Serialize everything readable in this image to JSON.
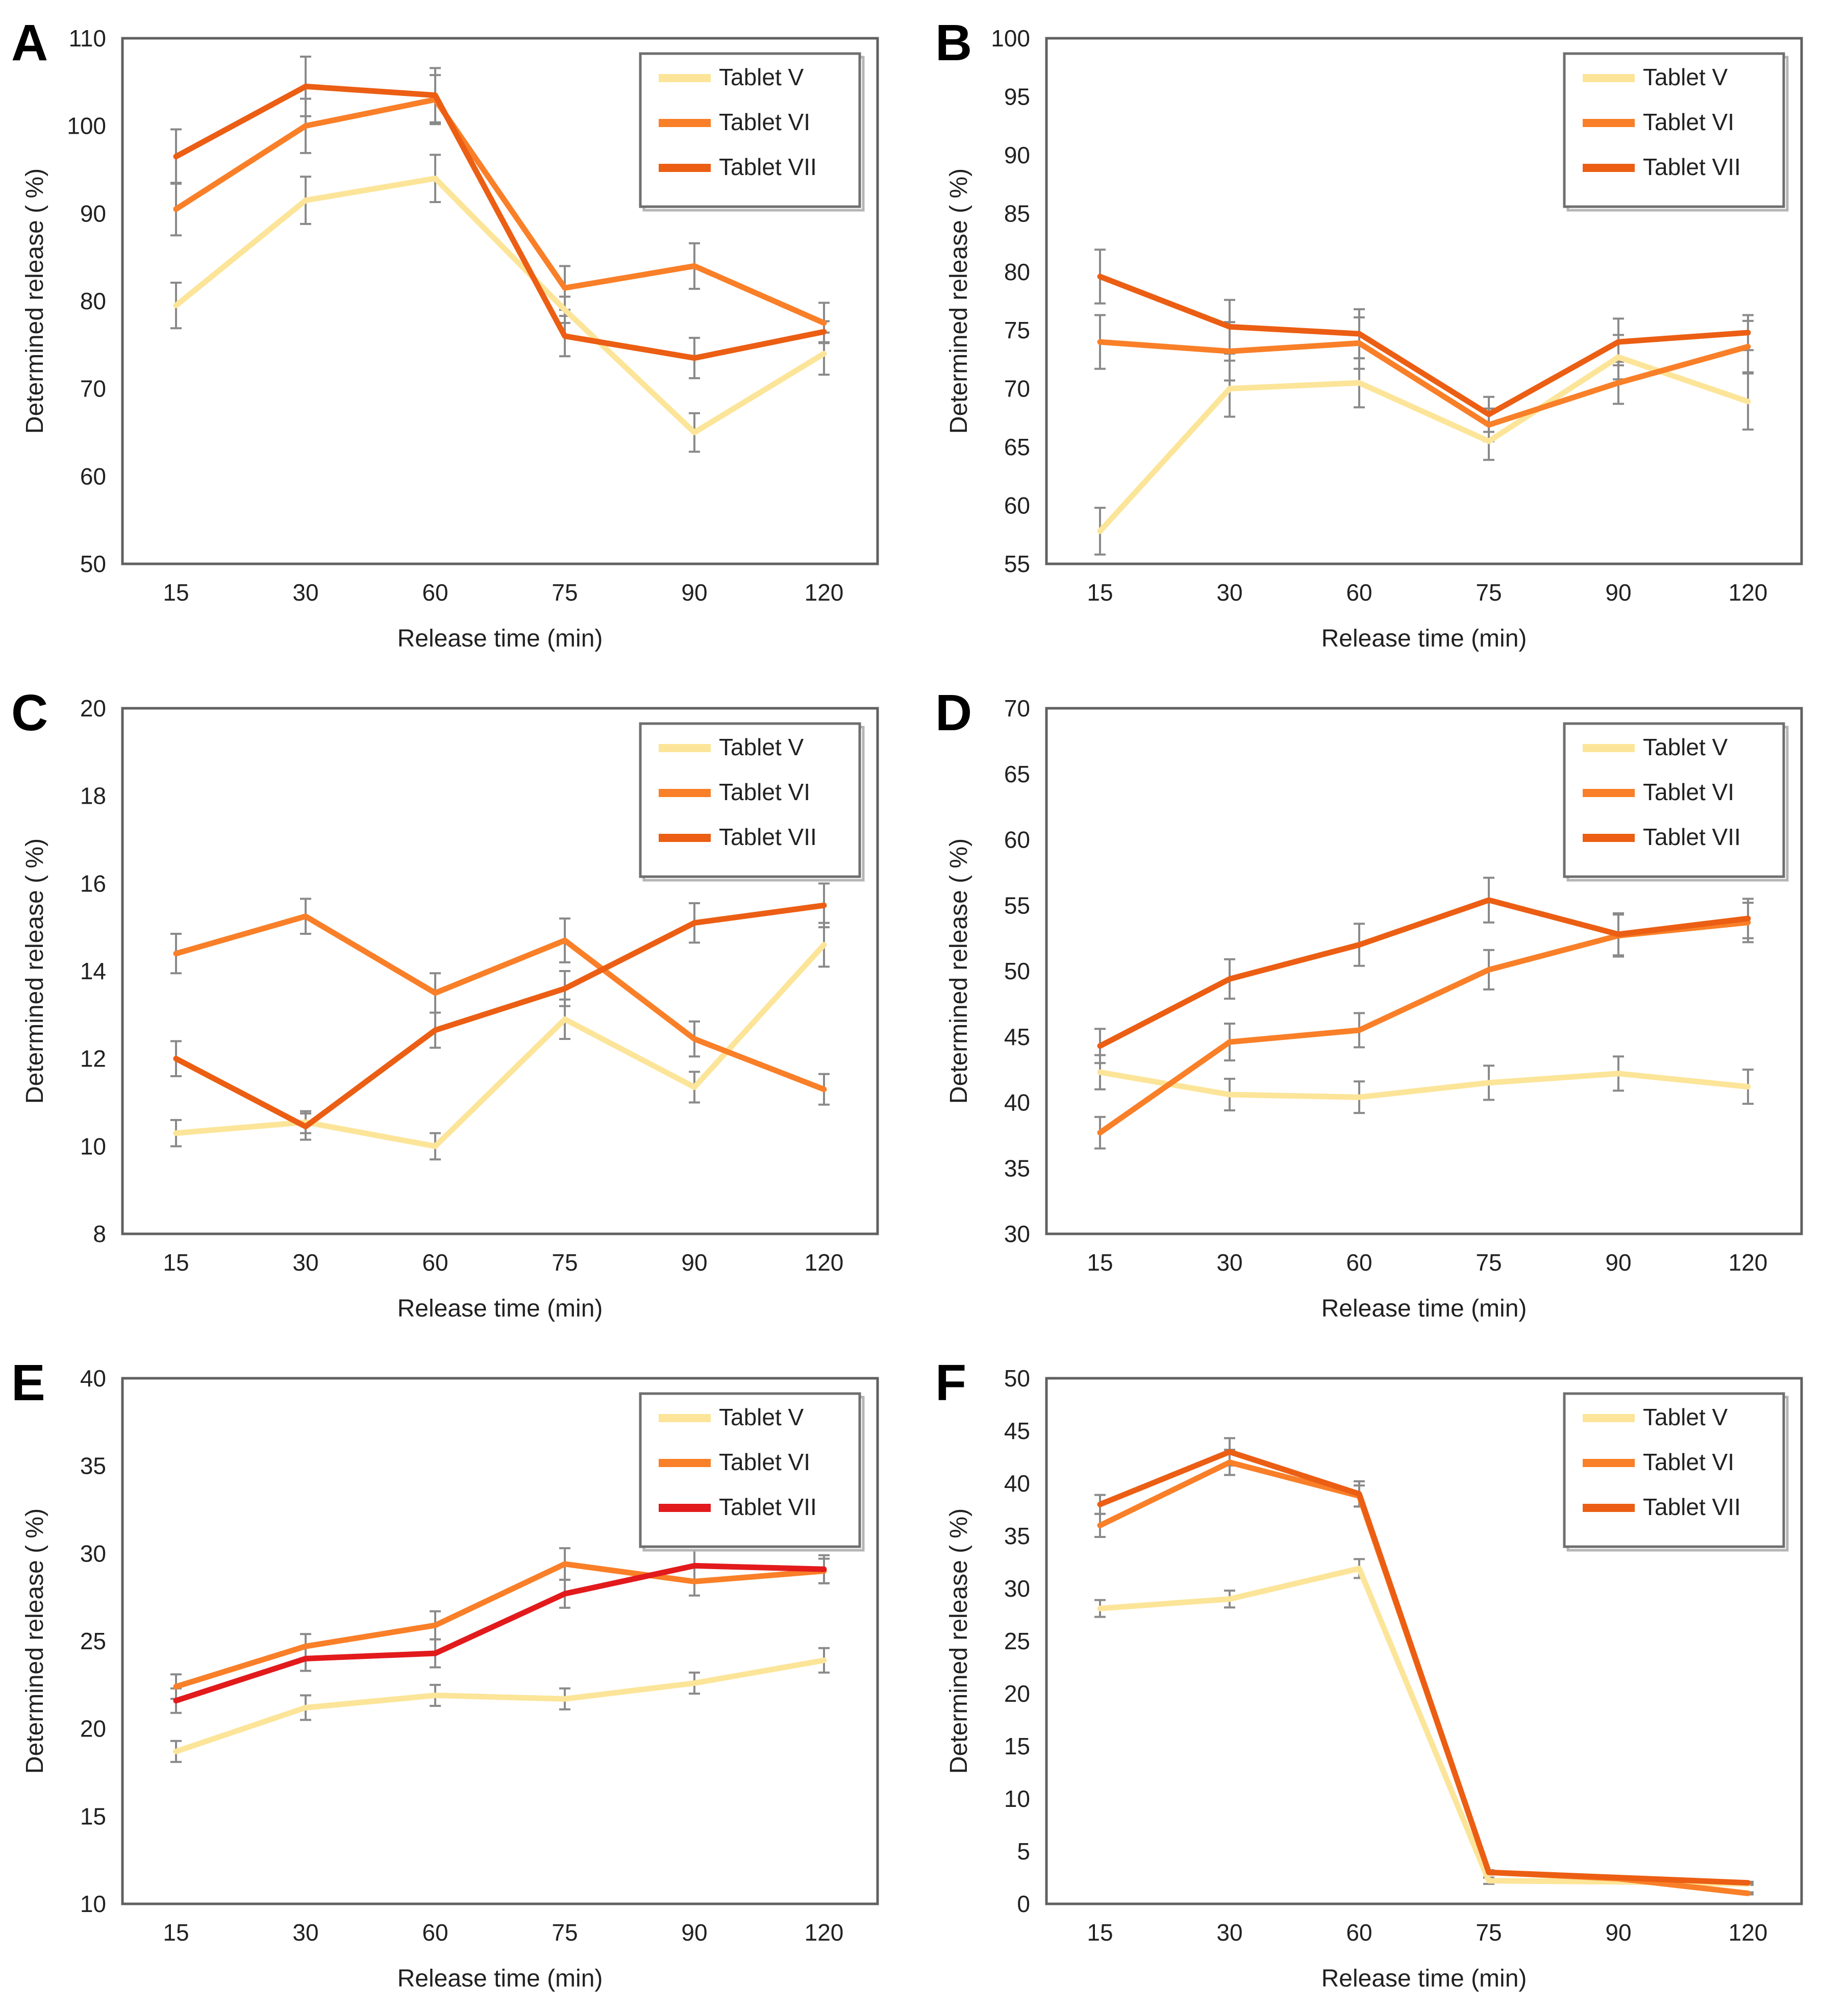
{
  "figure": {
    "xlabel": "Release time (min)",
    "ylabel": "Determined release ( %)",
    "categories": [
      "15",
      "30",
      "60",
      "75",
      "90",
      "120"
    ],
    "legend_labels": [
      "Tablet V",
      "Tablet VI",
      "Tablet VII"
    ],
    "legend_position": "top-right"
  },
  "colors": {
    "tablet_v": "#FCE599",
    "tablet_vi": "#F97F28",
    "tablet_vii": "#EB5E13",
    "tablet_vii_red": "#E21A1C",
    "error_bar": "#8A8A8A",
    "axis": "#606060",
    "text": "#212121",
    "legend_border": "#6F6F6F",
    "legend_shadow": "#B5B5B5"
  },
  "chart_data": [
    {
      "type": "line",
      "letter": "A",
      "xlabel": "Release time (min)",
      "ylabel": "Determined release ( %)",
      "categories": [
        "15",
        "30",
        "60",
        "75",
        "90",
        "120"
      ],
      "ylim": [
        50,
        110
      ],
      "ytick_step": 10,
      "grid": false,
      "legend_position": "top-right",
      "series": [
        {
          "name": "Tablet V",
          "color": "#FCE599",
          "values": [
            79.5,
            91.5,
            94.0,
            79.0,
            65.0,
            74.0
          ],
          "errors": [
            2.6,
            2.7,
            2.7,
            1.5,
            2.2,
            2.4
          ]
        },
        {
          "name": "Tablet VI",
          "color": "#F97F28",
          "values": [
            90.5,
            100.0,
            103.0,
            81.5,
            84.0,
            77.5
          ],
          "errors": [
            3.0,
            3.1,
            2.8,
            2.5,
            2.6,
            2.3
          ]
        },
        {
          "name": "Tablet VII",
          "color": "#EB5E13",
          "values": [
            96.5,
            104.5,
            103.5,
            76.0,
            73.5,
            76.5
          ],
          "errors": [
            3.1,
            3.4,
            3.1,
            2.3,
            2.3,
            1.2
          ]
        }
      ]
    },
    {
      "type": "line",
      "letter": "B",
      "xlabel": "Release time (min)",
      "ylabel": "Determined release ( %)",
      "categories": [
        "15",
        "30",
        "60",
        "75",
        "90",
        "120"
      ],
      "ylim": [
        55,
        100
      ],
      "ytick_step": 5,
      "grid": false,
      "legend_position": "top-right",
      "series": [
        {
          "name": "Tablet V",
          "color": "#FCE599",
          "values": [
            57.8,
            70.0,
            70.5,
            65.5,
            72.7,
            68.9
          ],
          "errors": [
            2.0,
            2.4,
            2.1,
            1.6,
            1.9,
            2.4
          ]
        },
        {
          "name": "Tablet VI",
          "color": "#F97F28",
          "values": [
            74.0,
            73.2,
            73.9,
            66.9,
            70.5,
            73.6
          ],
          "errors": [
            2.3,
            2.5,
            2.2,
            1.4,
            1.8,
            2.2
          ]
        },
        {
          "name": "Tablet VII",
          "color": "#EB5E13",
          "values": [
            79.6,
            75.3,
            74.7,
            67.8,
            74.0,
            74.8
          ],
          "errors": [
            2.3,
            2.3,
            2.1,
            1.5,
            2.0,
            1.5
          ]
        }
      ]
    },
    {
      "type": "line",
      "letter": "C",
      "xlabel": "Release time (min)",
      "ylabel": "Determined release ( %)",
      "categories": [
        "15",
        "30",
        "60",
        "75",
        "90",
        "120"
      ],
      "ylim": [
        8,
        20
      ],
      "ytick_step": 2,
      "grid": false,
      "legend_position": "top-right",
      "series": [
        {
          "name": "Tablet V",
          "color": "#FCE599",
          "values": [
            10.3,
            10.55,
            10.0,
            12.9,
            11.35,
            14.6
          ],
          "errors": [
            0.3,
            0.25,
            0.3,
            0.45,
            0.35,
            0.5
          ]
        },
        {
          "name": "Tablet VI",
          "color": "#F97F28",
          "values": [
            14.4,
            15.25,
            13.5,
            14.7,
            12.45,
            11.3
          ],
          "errors": [
            0.45,
            0.4,
            0.45,
            0.5,
            0.4,
            0.35
          ]
        },
        {
          "name": "Tablet VII",
          "color": "#EB5E13",
          "values": [
            12.0,
            10.45,
            12.65,
            13.6,
            15.1,
            15.5
          ],
          "errors": [
            0.4,
            0.3,
            0.4,
            0.4,
            0.45,
            0.5
          ]
        }
      ]
    },
    {
      "type": "line",
      "letter": "D",
      "xlabel": "Release time (min)",
      "ylabel": "Determined release ( %)",
      "categories": [
        "15",
        "30",
        "60",
        "75",
        "90",
        "120"
      ],
      "ylim": [
        30,
        70
      ],
      "ytick_step": 5,
      "grid": false,
      "legend_position": "top-right",
      "series": [
        {
          "name": "Tablet V",
          "color": "#FCE599",
          "values": [
            42.3,
            40.6,
            40.4,
            41.5,
            42.2,
            41.2
          ],
          "errors": [
            1.3,
            1.2,
            1.2,
            1.3,
            1.3,
            1.3
          ]
        },
        {
          "name": "Tablet VI",
          "color": "#F97F28",
          "values": [
            37.7,
            44.6,
            45.5,
            50.1,
            52.7,
            53.7
          ],
          "errors": [
            1.2,
            1.4,
            1.3,
            1.5,
            1.6,
            1.5
          ]
        },
        {
          "name": "Tablet VII",
          "color": "#EB5E13",
          "values": [
            44.3,
            49.4,
            52.0,
            55.4,
            52.8,
            54.0
          ],
          "errors": [
            1.3,
            1.5,
            1.6,
            1.7,
            1.6,
            1.5
          ]
        }
      ]
    },
    {
      "type": "line",
      "letter": "E",
      "xlabel": "Release time (min)",
      "ylabel": "Determined release ( %)",
      "categories": [
        "15",
        "30",
        "60",
        "75",
        "90",
        "120"
      ],
      "ylim": [
        10,
        40
      ],
      "ytick_step": 5,
      "grid": false,
      "legend_position": "top-right",
      "series": [
        {
          "name": "Tablet V",
          "color": "#FCE599",
          "values": [
            18.7,
            21.2,
            21.9,
            21.7,
            22.6,
            23.9
          ],
          "errors": [
            0.6,
            0.7,
            0.6,
            0.6,
            0.6,
            0.7
          ]
        },
        {
          "name": "Tablet VI",
          "color": "#F97F28",
          "values": [
            22.4,
            24.7,
            25.9,
            29.4,
            28.4,
            29.0
          ],
          "errors": [
            0.7,
            0.7,
            0.8,
            0.9,
            0.8,
            0.7
          ]
        },
        {
          "name": "Tablet VII",
          "color": "#E21A1C",
          "values": [
            21.6,
            24.0,
            24.3,
            27.7,
            29.3,
            29.1
          ],
          "errors": [
            0.7,
            0.7,
            0.8,
            0.8,
            0.9,
            0.8
          ]
        }
      ]
    },
    {
      "type": "line",
      "letter": "F",
      "xlabel": "Release time (min)",
      "ylabel": "Determined release ( %)",
      "categories": [
        "15",
        "30",
        "60",
        "75",
        "90",
        "120"
      ],
      "ylim": [
        0,
        50
      ],
      "ytick_step": 5,
      "grid": false,
      "legend_position": "top-right",
      "series": [
        {
          "name": "Tablet V",
          "color": "#FCE599",
          "values": [
            28.1,
            29.0,
            31.9,
            2.2,
            2.1,
            1.9
          ],
          "errors": [
            0.8,
            0.8,
            0.9,
            0.3,
            0.1,
            0.1
          ]
        },
        {
          "name": "Tablet VI",
          "color": "#F97F28",
          "values": [
            36.0,
            42.0,
            38.8,
            3.0,
            2.4,
            1.0
          ],
          "errors": [
            1.1,
            1.2,
            1.0,
            0.2,
            0.1,
            0.1
          ]
        },
        {
          "name": "Tablet VII",
          "color": "#EB5E13",
          "values": [
            38.0,
            43.0,
            39.0,
            3.0,
            2.5,
            2.0
          ],
          "errors": [
            0.9,
            1.3,
            1.2,
            0.2,
            0.1,
            0.1
          ]
        }
      ]
    }
  ]
}
